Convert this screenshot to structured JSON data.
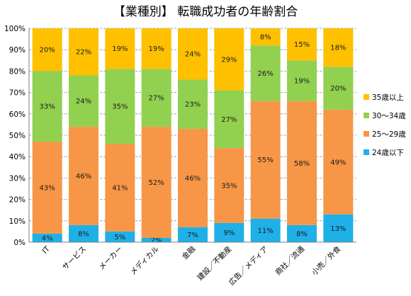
{
  "chart_data": {
    "type": "bar",
    "stacked": true,
    "title": "【業種別】 転職成功者の年齢割合",
    "xlabel": "",
    "ylabel": "",
    "ylim": [
      0,
      100
    ],
    "yticks": [
      "0%",
      "10%",
      "20%",
      "30%",
      "40%",
      "50%",
      "60%",
      "70%",
      "80%",
      "90%",
      "100%"
    ],
    "grid": true,
    "legend_position": "right",
    "categories": [
      "IT",
      "サービス",
      "メーカー",
      "メディカル",
      "金融",
      "建設／不動産",
      "広告／メディア",
      "商社／流通",
      "小売／外食"
    ],
    "series": [
      {
        "name": "24歳以下",
        "color": "#1fb0e8",
        "values": [
          4,
          8,
          5,
          2,
          7,
          9,
          11,
          8,
          13
        ],
        "labels": [
          "4%",
          "8%",
          "5%",
          "2%",
          "7%",
          "9%",
          "11%",
          "8%",
          "13%"
        ]
      },
      {
        "name": "25～29歳",
        "color": "#f79646",
        "values": [
          43,
          46,
          41,
          52,
          46,
          35,
          55,
          58,
          49
        ],
        "labels": [
          "43%",
          "46%",
          "41%",
          "52%",
          "46%",
          "35%",
          "55%",
          "58%",
          "49%"
        ]
      },
      {
        "name": "30～34歳",
        "color": "#92d050",
        "values": [
          33,
          24,
          35,
          27,
          23,
          27,
          26,
          19,
          20
        ],
        "labels": [
          "33%",
          "24%",
          "35%",
          "27%",
          "23%",
          "27%",
          "26%",
          "19%",
          "20%"
        ]
      },
      {
        "name": "35歳以上",
        "color": "#ffc000",
        "values": [
          20,
          22,
          19,
          19,
          24,
          29,
          8,
          15,
          18
        ],
        "labels": [
          "20%",
          "22%",
          "19%",
          "19%",
          "24%",
          "29%",
          "8%",
          "15%",
          "18%"
        ]
      }
    ]
  }
}
